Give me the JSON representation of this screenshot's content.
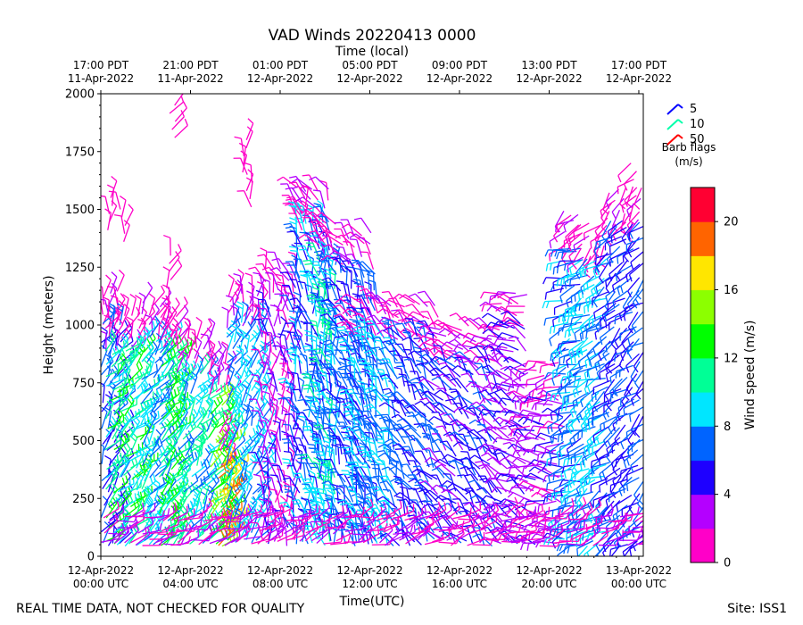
{
  "chart_data": {
    "type": "vad-wind-barbs",
    "title": "VAD Winds 20220413 0000",
    "top_axis_label": "Time (local)",
    "xlabel": "Time(UTC)",
    "ylabel": "Height (meters)",
    "xlim": [
      0,
      24.2
    ],
    "ylim": [
      0,
      2000
    ],
    "yticks": [
      0,
      250,
      500,
      750,
      1000,
      1250,
      1500,
      1750,
      2000
    ],
    "bottom_ticks": [
      {
        "h": 0,
        "line1": "12-Apr-2022",
        "line2": "00:00 UTC"
      },
      {
        "h": 4,
        "line1": "12-Apr-2022",
        "line2": "04:00 UTC"
      },
      {
        "h": 8,
        "line1": "12-Apr-2022",
        "line2": "08:00 UTC"
      },
      {
        "h": 12,
        "line1": "12-Apr-2022",
        "line2": "12:00 UTC"
      },
      {
        "h": 16,
        "line1": "12-Apr-2022",
        "line2": "16:00 UTC"
      },
      {
        "h": 20,
        "line1": "12-Apr-2022",
        "line2": "20:00 UTC"
      },
      {
        "h": 24,
        "line1": "13-Apr-2022",
        "line2": "00:00 UTC"
      }
    ],
    "top_ticks": [
      {
        "h": 0,
        "line1": "17:00 PDT",
        "line2": "11-Apr-2022"
      },
      {
        "h": 4,
        "line1": "21:00 PDT",
        "line2": "11-Apr-2022"
      },
      {
        "h": 8,
        "line1": "01:00 PDT",
        "line2": "12-Apr-2022"
      },
      {
        "h": 12,
        "line1": "05:00 PDT",
        "line2": "12-Apr-2022"
      },
      {
        "h": 16,
        "line1": "09:00 PDT",
        "line2": "12-Apr-2022"
      },
      {
        "h": 20,
        "line1": "13:00 PDT",
        "line2": "12-Apr-2022"
      },
      {
        "h": 24,
        "line1": "17:00 PDT",
        "line2": "12-Apr-2022"
      }
    ],
    "legend": {
      "entries": [
        {
          "label": "5",
          "color": "#0000ff"
        },
        {
          "label": "10",
          "color": "#00ffaa"
        },
        {
          "label": "50",
          "color": "#ff0000"
        }
      ],
      "caption_line1": "Barb flags",
      "caption_line2": "(m/s)"
    },
    "colorbar": {
      "label": "Wind speed (m/s)",
      "min": 0,
      "max": 22,
      "ticks": [
        0,
        4,
        8,
        12,
        16,
        20
      ],
      "colors": [
        "#ff00c8",
        "#b400ff",
        "#1e00ff",
        "#0064ff",
        "#00e6ff",
        "#00ff96",
        "#00ff00",
        "#8cff00",
        "#ffe600",
        "#ff6400",
        "#ff0032"
      ]
    },
    "regions": [
      {
        "t0": 0.0,
        "t1": 1.0,
        "top": 1000,
        "speed": 6,
        "dir": 60
      },
      {
        "t0": 0.2,
        "t1": 1.8,
        "top": 900,
        "speed": 11,
        "dir": 45
      },
      {
        "t0": 1.8,
        "t1": 3.0,
        "top": 950,
        "speed": 8,
        "dir": 50
      },
      {
        "t0": 2.6,
        "t1": 3.4,
        "top": 900,
        "speed": 12,
        "dir": 45
      },
      {
        "t0": 3.4,
        "t1": 4.8,
        "top": 800,
        "speed": 9,
        "dir": 55
      },
      {
        "t0": 4.8,
        "t1": 5.6,
        "top": 700,
        "speed": 13,
        "dir": 40
      },
      {
        "t0": 5.2,
        "t1": 5.8,
        "top": 400,
        "speed": 18,
        "dir": 35
      },
      {
        "t0": 5.6,
        "t1": 7.2,
        "top": 1000,
        "speed": 8,
        "dir": 60
      },
      {
        "t0": 7.2,
        "t1": 8.6,
        "top": 1100,
        "speed": 3,
        "dir": 90
      },
      {
        "t0": 8.6,
        "t1": 10.2,
        "top": 1450,
        "speed": 7,
        "dir": 100
      },
      {
        "t0": 9.6,
        "t1": 10.6,
        "top": 1300,
        "speed": 9,
        "dir": 100
      },
      {
        "t0": 10.6,
        "t1": 12.2,
        "top": 1250,
        "speed": 6,
        "dir": 110
      },
      {
        "t0": 11.2,
        "t1": 13.2,
        "top": 950,
        "speed": 8,
        "dir": 110
      },
      {
        "t0": 13.2,
        "t1": 15.0,
        "top": 950,
        "speed": 6,
        "dir": 120
      },
      {
        "t0": 15.0,
        "t1": 17.8,
        "top": 850,
        "speed": 5,
        "dir": 130
      },
      {
        "t0": 17.8,
        "t1": 19.0,
        "top": 1000,
        "speed": 4,
        "dir": 150
      },
      {
        "t0": 19.0,
        "t1": 20.6,
        "top": 700,
        "speed": 3,
        "dir": 170
      },
      {
        "t0": 20.6,
        "t1": 21.4,
        "top": 1350,
        "speed": 7,
        "dir": 200
      },
      {
        "t0": 21.4,
        "t1": 22.6,
        "top": 1300,
        "speed": 8,
        "dir": 210
      },
      {
        "t0": 22.6,
        "t1": 24.2,
        "top": 1450,
        "speed": 6,
        "dir": 220
      }
    ],
    "upper_fringe_speed": 1.5,
    "lower_fringe_speed": 2,
    "sparse_upper_points": [
      {
        "t": 0.4,
        "h": 1550,
        "speed": 1.5,
        "dir": 80
      },
      {
        "t": 1.0,
        "h": 1500,
        "speed": 1.5,
        "dir": 80
      },
      {
        "t": 3.0,
        "h": 1300,
        "speed": 1.5,
        "dir": 70
      },
      {
        "t": 3.2,
        "h": 1950,
        "speed": 1.5,
        "dir": 60
      },
      {
        "t": 6.4,
        "h": 1800,
        "speed": 1.5,
        "dir": 90
      },
      {
        "t": 6.6,
        "h": 1650,
        "speed": 1.5,
        "dir": 90
      },
      {
        "t": 9.0,
        "h": 1550,
        "speed": 1.5,
        "dir": 100
      },
      {
        "t": 23.8,
        "h": 1700,
        "speed": 1.5,
        "dir": 210
      }
    ]
  },
  "footer": {
    "left_note": "REAL TIME DATA, NOT CHECKED FOR QUALITY",
    "site": "Site: ISS1"
  }
}
